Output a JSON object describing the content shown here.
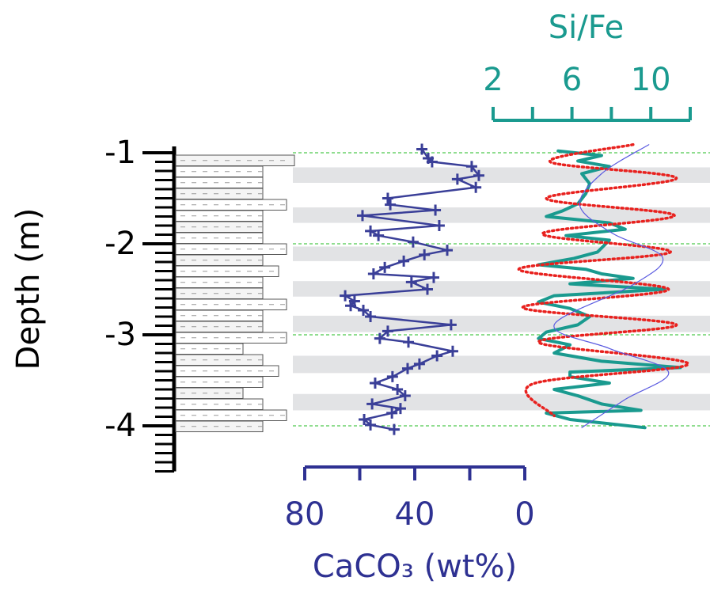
{
  "chart_data": {
    "type": "depth-profile",
    "ylabel": "Depth (m)",
    "ylim": [
      -4.5,
      -0.93
    ],
    "yticks": [
      -1,
      -2,
      -3,
      -4
    ],
    "yminor_step": 0.1,
    "grid": true,
    "grid_color": "#22bb22",
    "shaded_intervals": [
      [
        -1.16,
        -1.33
      ],
      [
        -1.6,
        -1.77
      ],
      [
        -2.03,
        -2.19
      ],
      [
        -2.41,
        -2.58
      ],
      [
        -2.79,
        -2.97
      ],
      [
        -3.23,
        -3.42
      ],
      [
        -3.65,
        -3.83
      ]
    ],
    "x_axes": [
      {
        "label": "CaCO₃ (wt%)",
        "color": "#2e3192",
        "position": "bottom",
        "xlim": [
          80,
          0
        ],
        "xticks": [
          80,
          40,
          0
        ],
        "xminorticks": [
          60,
          20
        ]
      },
      {
        "label": "Si/Fe",
        "color": "#1a9a8f",
        "position": "top",
        "xlim": [
          2,
          12
        ],
        "xticks": [
          2,
          6,
          10
        ],
        "xminorticks": [
          4,
          8,
          12
        ]
      }
    ],
    "series": [
      {
        "axis": 0,
        "color": "#3a3f98",
        "style": "solid",
        "marker": "+",
        "depth": [
          -0.96,
          -1.06,
          -1.1,
          -1.15,
          -1.25,
          -1.29,
          -1.38,
          -1.5,
          -1.57,
          -1.63,
          -1.69,
          -1.8,
          -1.86,
          -1.91,
          -1.98,
          -2.07,
          -2.12,
          -2.19,
          -2.26,
          -2.33,
          -2.37,
          -2.42,
          -2.5,
          -2.57,
          -2.63,
          -2.68,
          -2.73,
          -2.8,
          -2.89,
          -2.96,
          -3.04,
          -3.08,
          -3.18,
          -3.23,
          -3.32,
          -3.37,
          -3.46,
          -3.53,
          -3.6,
          -3.67,
          -3.76,
          -3.81,
          -3.86,
          -3.93,
          -3.99,
          -4.04
        ],
        "values": [
          37.4,
          35.1,
          33.7,
          19.3,
          16.7,
          24.5,
          17.8,
          49.8,
          48.9,
          32.5,
          59.0,
          31.1,
          56.1,
          53.2,
          40.6,
          28.2,
          36.5,
          44.0,
          50.9,
          55.0,
          33.1,
          41.2,
          35.4,
          65.3,
          61.9,
          63.3,
          58.7,
          56.1,
          26.8,
          49.8,
          52.7,
          42.3,
          26.2,
          31.9,
          38.3,
          42.6,
          48.1,
          54.4,
          46.3,
          43.5,
          55.5,
          45.2,
          48.3,
          58.4,
          56.1,
          47.5
        ]
      },
      {
        "axis": 1,
        "color": "#1a9a8f",
        "style": "solid",
        "depth": [
          -0.98,
          -1.03,
          -1.09,
          -1.15,
          -1.23,
          -1.34,
          -1.45,
          -1.56,
          -1.64,
          -1.7,
          -1.77,
          -1.84,
          -1.91,
          -1.96,
          -2.09,
          -2.16,
          -2.23,
          -2.28,
          -2.33,
          -2.38,
          -2.44,
          -2.5,
          -2.57,
          -2.64,
          -2.71,
          -2.8,
          -2.89,
          -2.97,
          -3.04,
          -3.11,
          -3.2,
          -3.29,
          -3.36,
          -3.41,
          -3.46,
          -3.53,
          -3.6,
          -3.67,
          -3.76,
          -3.83,
          -3.86,
          -3.93,
          -4.02
        ],
        "values": [
          5.3,
          7.5,
          6.3,
          7.9,
          6.5,
          6.9,
          6.7,
          6.3,
          5.5,
          4.7,
          7.9,
          8.7,
          5.7,
          7.9,
          7.3,
          6.1,
          4.3,
          6.7,
          7.5,
          9.1,
          5.9,
          10.7,
          5.1,
          4.3,
          5.9,
          6.9,
          6.3,
          4.7,
          4.3,
          5.9,
          5.1,
          7.5,
          11.5,
          5.9,
          5.9,
          7.9,
          5.1,
          6.3,
          7.5,
          9.5,
          4.7,
          5.9,
          9.7
        ]
      },
      {
        "axis": 1,
        "color": "#e8211e",
        "style": "dotted",
        "depth": [
          -0.91,
          -1.1,
          -1.28,
          -1.5,
          -1.69,
          -1.89,
          -2.09,
          -2.28,
          -2.5,
          -2.7,
          -2.89,
          -3.08,
          -3.32,
          -3.54,
          -3.89
        ],
        "values": [
          9.1,
          4.9,
          11.3,
          4.7,
          11.2,
          4.5,
          11.0,
          3.3,
          10.9,
          3.5,
          11.3,
          4.3,
          11.9,
          4.0,
          5.1
        ]
      },
      {
        "axis": 1,
        "color": "#5a5ae0",
        "style": "thin",
        "depth": [
          -0.91,
          -1.23,
          -1.58,
          -1.89,
          -2.15,
          -2.45,
          -2.89,
          -3.15,
          -3.41,
          -3.71,
          -4.02
        ],
        "values": [
          9.9,
          7.5,
          6.4,
          8.1,
          10.6,
          9.1,
          5.1,
          7.9,
          10.9,
          8.7,
          6.5
        ]
      }
    ]
  }
}
